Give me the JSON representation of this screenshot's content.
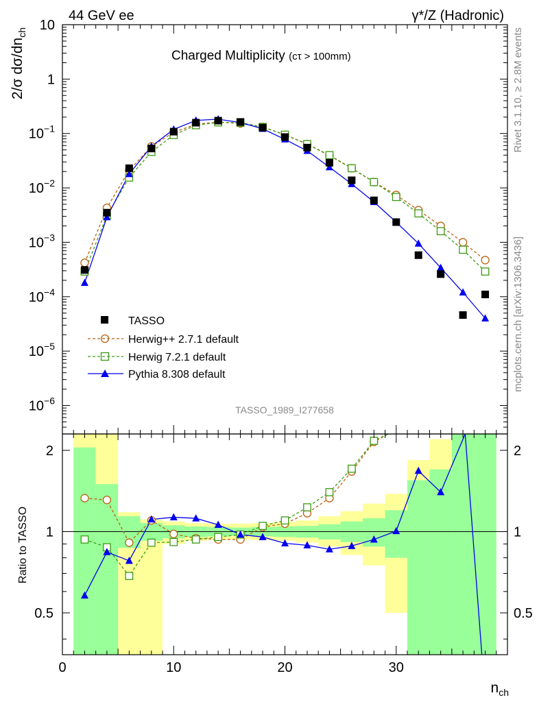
{
  "header": {
    "left": "44 GeV ee",
    "right": "γ*/Z (Hadronic)"
  },
  "side": {
    "rivet": "Rivet 3.1.10, ≥ 2.8M events",
    "mcplots": "mcplots.cern.ch [arXiv:1306.3436]"
  },
  "colors": {
    "tasso": "#000000",
    "herwigpp": "#b8620f",
    "herwig7": "#3a9a10",
    "pythia": "#0000ee",
    "band_green": "#99ff99",
    "band_yellow": "#ffff99"
  },
  "chart_data": {
    "type": "line",
    "title": "Charged Multiplicity",
    "title_sub": "(cτ > 100mm)",
    "analysis_label": "TASSO_1989_I277658",
    "xlabel": "n",
    "xlabel_sub": "ch",
    "ylabel": "2/σ dσ/dn",
    "ylabel_sub": "ch",
    "ratio_ylabel": "Ratio to TASSO",
    "xlim": [
      0,
      40
    ],
    "ylim": [
      3e-07,
      10
    ],
    "yscale": "log",
    "ratio_ylim": [
      0.35,
      2.3
    ],
    "ratio_yscale": "log",
    "x_ticks": [
      0,
      10,
      20,
      30
    ],
    "x_tick_labels": [
      "0",
      "10",
      "20",
      "30"
    ],
    "y_tick_labels": [
      {
        "base": "10",
        "exp": "",
        "value": 10
      },
      {
        "base": "1",
        "exp": "",
        "value": 1
      },
      {
        "base": "10",
        "exp": "−1",
        "value": 0.1
      },
      {
        "base": "10",
        "exp": "−2",
        "value": 0.01
      },
      {
        "base": "10",
        "exp": "−3",
        "value": 0.001
      },
      {
        "base": "10",
        "exp": "−4",
        "value": 0.0001
      },
      {
        "base": "10",
        "exp": "−5",
        "value": 1e-05
      },
      {
        "base": "10",
        "exp": "−6",
        "value": 1e-06
      }
    ],
    "ratio_y_ticks": [
      {
        "label": "0.5",
        "value": 0.5
      },
      {
        "label": "1",
        "value": 1
      },
      {
        "label": "2",
        "value": 2
      }
    ],
    "legend_position": "lower-left",
    "series": [
      {
        "name": "TASSO",
        "style": "data",
        "x": [
          2,
          4,
          6,
          8,
          10,
          12,
          14,
          16,
          18,
          20,
          22,
          24,
          26,
          28,
          30,
          32,
          34,
          36,
          38
        ],
        "values": [
          0.00031,
          0.0035,
          0.023,
          0.053,
          0.108,
          0.158,
          0.172,
          0.163,
          0.128,
          0.086,
          0.055,
          0.029,
          0.0138,
          0.0059,
          0.00235,
          0.00058,
          0.00026,
          4.6e-05,
          0.00011
        ]
      },
      {
        "name": "Herwig++ 2.7.1 default",
        "style": "dashed",
        "x": [
          2,
          4,
          6,
          8,
          10,
          12,
          14,
          16,
          18,
          20,
          22,
          24,
          26,
          28,
          30,
          32,
          34,
          36,
          38
        ],
        "values": [
          0.00042,
          0.0043,
          0.021,
          0.058,
          0.105,
          0.148,
          0.162,
          0.153,
          0.132,
          0.094,
          0.064,
          0.039,
          0.023,
          0.0128,
          0.0074,
          0.0039,
          0.002,
          0.001,
          0.00047
        ]
      },
      {
        "name": "Herwig 7.2.1 default",
        "style": "dashed",
        "x": [
          2,
          4,
          6,
          8,
          10,
          12,
          14,
          16,
          18,
          20,
          22,
          24,
          26,
          28,
          30,
          32,
          34,
          36,
          38
        ],
        "values": [
          0.00029,
          0.0031,
          0.0155,
          0.046,
          0.094,
          0.142,
          0.16,
          0.158,
          0.132,
          0.095,
          0.064,
          0.04,
          0.023,
          0.0128,
          0.0068,
          0.0034,
          0.0016,
          0.00073,
          0.00029
        ]
      },
      {
        "name": "Pythia 8.308 default",
        "style": "solid",
        "x": [
          2,
          4,
          6,
          8,
          10,
          12,
          14,
          16,
          18,
          20,
          22,
          24,
          26,
          28,
          30,
          32,
          34,
          36,
          38
        ],
        "values": [
          0.00018,
          0.0029,
          0.018,
          0.058,
          0.119,
          0.174,
          0.183,
          0.159,
          0.122,
          0.078,
          0.048,
          0.024,
          0.0118,
          0.0055,
          0.00235,
          0.00095,
          0.00034,
          0.00012,
          4e-05
        ]
      }
    ],
    "ratio_series": [
      {
        "name": "Herwig++ 2.7.1 default",
        "x": [
          2,
          4,
          6,
          8,
          10,
          12,
          14,
          16,
          18,
          20,
          22,
          24,
          26,
          28,
          29.3
        ],
        "values": [
          1.33,
          1.31,
          0.91,
          1.1,
          0.98,
          0.945,
          0.935,
          0.935,
          1.04,
          1.07,
          1.17,
          1.33,
          1.67,
          2.15,
          2.3
        ]
      },
      {
        "name": "Herwig 7.2.1 default",
        "x": [
          2,
          4,
          6,
          8,
          10,
          12,
          14,
          16,
          18,
          20,
          22,
          24,
          26,
          28,
          29.3
        ],
        "values": [
          0.935,
          0.875,
          0.685,
          0.91,
          0.915,
          0.935,
          0.955,
          0.975,
          1.05,
          1.1,
          1.23,
          1.4,
          1.71,
          2.17,
          2.3
        ]
      },
      {
        "name": "Pythia 8.308 default",
        "x": [
          2,
          4,
          6,
          8,
          10,
          12,
          14,
          16,
          18,
          20,
          22,
          24,
          26,
          28,
          30,
          32,
          34,
          36.2,
          37.7
        ],
        "values": [
          0.58,
          0.84,
          0.78,
          1.11,
          1.13,
          1.12,
          1.06,
          0.975,
          0.955,
          0.905,
          0.89,
          0.86,
          0.885,
          0.935,
          1.005,
          1.68,
          1.4,
          2.3,
          0.35
        ]
      }
    ],
    "ratio_bands": {
      "bins": [
        [
          1,
          3
        ],
        [
          3,
          5
        ],
        [
          5,
          7
        ],
        [
          7,
          9
        ],
        [
          9,
          11
        ],
        [
          11,
          13
        ],
        [
          13,
          15
        ],
        [
          15,
          17
        ],
        [
          17,
          19
        ],
        [
          19,
          21
        ],
        [
          21,
          23
        ],
        [
          23,
          25
        ],
        [
          25,
          27
        ],
        [
          27,
          29
        ],
        [
          29,
          31
        ],
        [
          31,
          33
        ],
        [
          33,
          35
        ],
        [
          35,
          37
        ],
        [
          37,
          39
        ]
      ],
      "stat_low": [
        0.35,
        0.35,
        0.87,
        0.925,
        0.945,
        0.955,
        0.96,
        0.965,
        0.96,
        0.955,
        0.95,
        0.935,
        0.915,
        0.88,
        0.8,
        0.35,
        0.35,
        0.35,
        0.35
      ],
      "stat_high": [
        2.05,
        1.5,
        1.14,
        1.075,
        1.055,
        1.045,
        1.04,
        1.035,
        1.04,
        1.045,
        1.05,
        1.065,
        1.09,
        1.12,
        1.2,
        1.55,
        1.7,
        2.3,
        2.3
      ],
      "total_low": [
        0.35,
        0.35,
        0.35,
        0.35,
        0.9,
        0.925,
        0.935,
        0.935,
        0.93,
        0.925,
        0.91,
        0.88,
        0.82,
        0.75,
        0.5,
        0.35,
        0.35,
        0.35,
        0.35
      ],
      "total_high": [
        2.3,
        2.3,
        1.18,
        1.11,
        1.09,
        1.075,
        1.07,
        1.07,
        1.075,
        1.085,
        1.1,
        1.14,
        1.19,
        1.27,
        1.38,
        1.84,
        2.2,
        2.3,
        2.3
      ]
    }
  }
}
